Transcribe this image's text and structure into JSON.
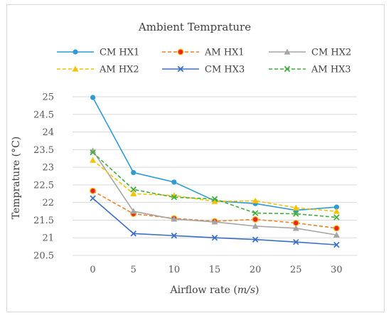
{
  "chart_data": {
    "type": "line",
    "title": "Ambient Temprature",
    "xlabel": "Airflow rate (m/s)",
    "xlabel_main": "Airflow rate (",
    "xlabel_unit": "m/s",
    "xlabel_close": ")",
    "ylabel": "Temprature (°C)",
    "x": [
      0,
      5,
      10,
      15,
      20,
      25,
      30
    ],
    "x_tick_labels": [
      "0",
      "5",
      "10",
      "15",
      "20",
      "25",
      "30"
    ],
    "ylim": [
      20.5,
      25.0
    ],
    "y_tick_labels": [
      "20.5",
      "21",
      "21.5",
      "22",
      "22.5",
      "23",
      "23.5",
      "24",
      "24.5",
      "25"
    ],
    "y_ticks": [
      20.5,
      21,
      21.5,
      22,
      22.5,
      23,
      23.5,
      24,
      24.5,
      25
    ],
    "grid": true,
    "legend_position": "top",
    "series": [
      {
        "name": "CM HX1",
        "color": "#2e9bd6",
        "dash": "solid",
        "marker": "circle",
        "values": [
          24.98,
          22.85,
          22.58,
          22.05,
          21.97,
          21.78,
          21.87
        ]
      },
      {
        "name": "AM HX1",
        "color": "#f4812a",
        "dash": "dashed",
        "marker": "circle-red",
        "values": [
          22.33,
          21.68,
          21.55,
          21.47,
          21.52,
          21.42,
          21.27
        ]
      },
      {
        "name": "CM HX2",
        "color": "#a5a5a5",
        "dash": "solid",
        "marker": "triangle",
        "values": [
          23.47,
          21.75,
          21.53,
          21.45,
          21.33,
          21.27,
          21.08
        ]
      },
      {
        "name": "AM HX2",
        "color": "#f6c200",
        "dash": "dashed",
        "marker": "triangle",
        "values": [
          23.2,
          22.25,
          22.2,
          22.03,
          22.05,
          21.85,
          21.75
        ]
      },
      {
        "name": "CM HX3",
        "color": "#3b6fc4",
        "dash": "solid",
        "marker": "x",
        "values": [
          22.12,
          21.12,
          21.06,
          21.0,
          20.95,
          20.88,
          20.8
        ]
      },
      {
        "name": "AM HX3",
        "color": "#3fae3a",
        "dash": "dashed",
        "marker": "x",
        "values": [
          23.42,
          22.37,
          22.15,
          22.1,
          21.7,
          21.68,
          21.58
        ]
      }
    ]
  }
}
